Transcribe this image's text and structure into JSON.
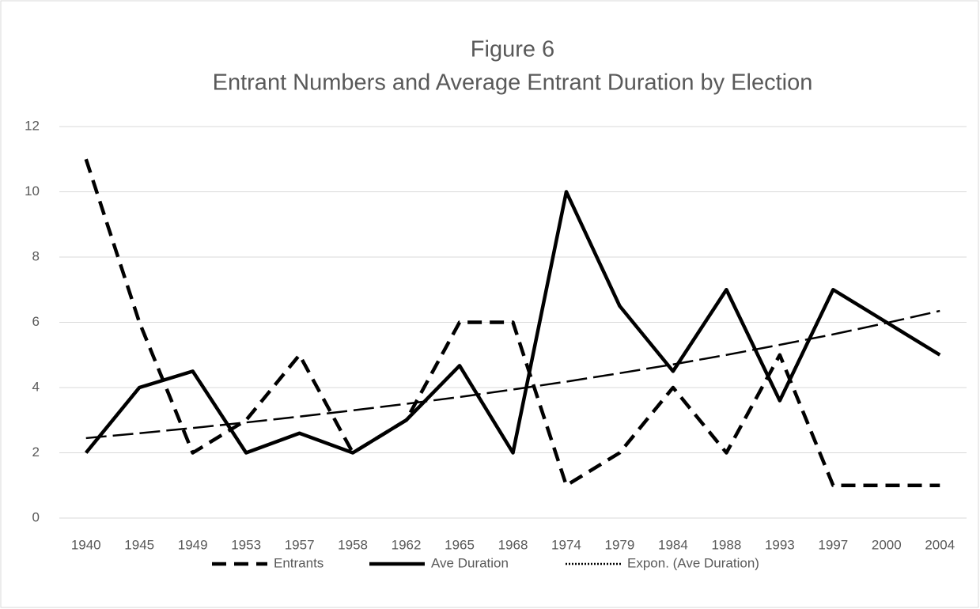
{
  "chart_data": {
    "type": "line",
    "title": "Figure 6",
    "subtitle": "Entrant Numbers and Average Entrant Duration by Election",
    "categories": [
      "1940",
      "1945",
      "1949",
      "1953",
      "1957",
      "1958",
      "1962",
      "1965",
      "1968",
      "1974",
      "1979",
      "1984",
      "1988",
      "1993",
      "1997",
      "2000",
      "2004"
    ],
    "series": [
      {
        "name": "Entrants",
        "color": "#000000",
        "dash": "18,10",
        "values": [
          11,
          6,
          2,
          3,
          5,
          2,
          3,
          6,
          6,
          1,
          2,
          4,
          2,
          5,
          1,
          1,
          1
        ]
      },
      {
        "name": "Ave Duration",
        "color": "#000000",
        "dash": "none",
        "values": [
          2,
          4,
          4.5,
          2,
          2.6,
          2,
          3,
          4.67,
          2,
          10,
          6.5,
          4.5,
          7,
          3.6,
          7,
          6,
          5
        ]
      },
      {
        "name": "Expon. (Ave Duration)",
        "color": "#000000",
        "dash": "26,8",
        "values": [
          2.45,
          2.6,
          2.76,
          2.93,
          3.11,
          3.3,
          3.5,
          3.71,
          3.94,
          4.18,
          4.44,
          4.71,
          5.0,
          5.31,
          5.63,
          5.98,
          6.35
        ]
      }
    ],
    "ylim": [
      0,
      12
    ],
    "yticks": [
      0,
      2,
      4,
      6,
      8,
      10,
      12
    ],
    "grid": true,
    "legend": "bottom"
  }
}
